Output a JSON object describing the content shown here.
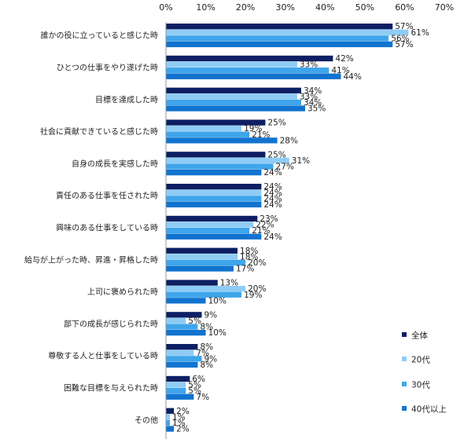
{
  "chart_data": {
    "type": "bar",
    "orientation": "horizontal",
    "title": "",
    "xlabel": "",
    "ylabel": "",
    "xlim": [
      0,
      70
    ],
    "x_ticks": [
      0,
      10,
      20,
      30,
      40,
      50,
      60,
      70
    ],
    "tick_suffix": "%",
    "grid": false,
    "legend_position": "right",
    "categories": [
      "誰かの役に立っていると感じた時",
      "ひとつの仕事をやり遂げた時",
      "目標を達成した時",
      "社会に貢献できていると感じた時",
      "自身の成長を実感した時",
      "責任のある仕事を任された時",
      "興味のある仕事をしている時",
      "給与が上がった時、昇進・昇格した時",
      "上司に褒められた時",
      "部下の成長が感じられた時",
      "尊敬する人と仕事をしている時",
      "困難な目標を与えられた時",
      "その他"
    ],
    "series": [
      {
        "name": "全体",
        "color": "#0d1f63",
        "values": [
          57,
          42,
          34,
          25,
          25,
          24,
          23,
          18,
          13,
          9,
          8,
          6,
          2
        ]
      },
      {
        "name": "20代",
        "color": "#8fccf5",
        "values": [
          61,
          33,
          33,
          19,
          31,
          24,
          22,
          18,
          20,
          5,
          7,
          5,
          1
        ]
      },
      {
        "name": "30代",
        "color": "#3fa5ea",
        "values": [
          56,
          41,
          34,
          21,
          27,
          24,
          21,
          20,
          19,
          8,
          9,
          5,
          1
        ]
      },
      {
        "name": "40代以上",
        "color": "#1173cf",
        "values": [
          57,
          44,
          35,
          28,
          24,
          24,
          24,
          17,
          10,
          10,
          8,
          7,
          2
        ]
      }
    ]
  }
}
